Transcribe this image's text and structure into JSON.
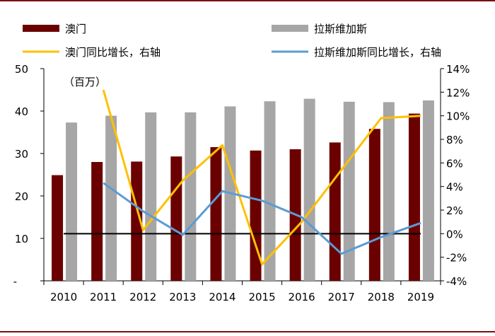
{
  "chart_data": {
    "type": "bar",
    "unit_note": "（百万）",
    "categories": [
      "2010",
      "2011",
      "2012",
      "2013",
      "2014",
      "2015",
      "2016",
      "2017",
      "2018",
      "2019"
    ],
    "series": [
      {
        "name": "澳门",
        "kind": "bar",
        "axis": "left",
        "color": "#6b0000",
        "values": [
          24.9,
          28.0,
          28.1,
          29.3,
          31.5,
          30.7,
          31.0,
          32.6,
          35.8,
          39.4
        ]
      },
      {
        "name": "拉斯维加斯",
        "kind": "bar",
        "axis": "left",
        "color": "#a6a6a6",
        "values": [
          37.3,
          38.9,
          39.7,
          39.7,
          41.1,
          42.3,
          42.9,
          42.2,
          42.1,
          42.5
        ]
      },
      {
        "name": "澳门同比增长，右轴",
        "kind": "line",
        "axis": "right",
        "color": "#ffc000",
        "values": [
          null,
          12.2,
          0.3,
          4.5,
          7.5,
          -2.6,
          1.0,
          5.4,
          9.8,
          10.0
        ]
      },
      {
        "name": "拉斯维加斯同比增长，右轴",
        "kind": "line",
        "axis": "right",
        "color": "#5b9bd5",
        "values": [
          null,
          4.3,
          1.9,
          -0.1,
          3.6,
          2.8,
          1.4,
          -1.7,
          -0.3,
          0.9
        ]
      }
    ],
    "left_axis": {
      "ylim": [
        0,
        50
      ],
      "ticks": [
        50,
        40,
        30,
        20,
        10
      ],
      "tick_labels": [
        "50",
        "40",
        "30",
        "20",
        "10"
      ],
      "bottom_label": "-"
    },
    "right_axis": {
      "ylim": [
        -4,
        14
      ],
      "ticks": [
        14,
        12,
        10,
        8,
        6,
        4,
        2,
        0,
        -2,
        -4
      ],
      "tick_labels": [
        "14%",
        "12%",
        "10%",
        "8%",
        "6%",
        "4%",
        "2%",
        "0%",
        "-2%",
        "-4%"
      ]
    },
    "reference_line": {
      "axis": "right",
      "value": 0,
      "color": "#000000"
    },
    "legend_placement": "top",
    "grid": false
  }
}
